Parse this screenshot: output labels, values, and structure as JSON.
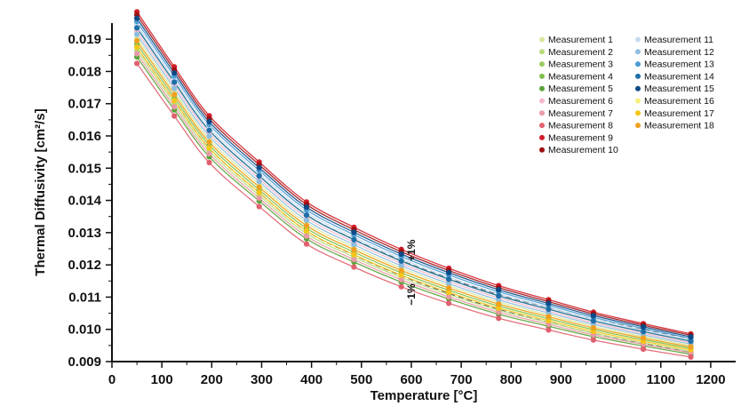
{
  "chart_data": {
    "type": "line",
    "title": "",
    "xlabel": "Temperature [°C]",
    "ylabel": "Thermal Diffusivity [cm²/s]",
    "xlim": [
      0,
      1250
    ],
    "ylim": [
      0.009,
      0.0195
    ],
    "x_ticks": [
      "0",
      "100",
      "200",
      "300",
      "400",
      "500",
      "600",
      "700",
      "800",
      "900",
      "1000",
      "1100",
      "1200"
    ],
    "y_ticks": [
      "0.009",
      "0.010",
      "0.011",
      "0.012",
      "0.013",
      "0.014",
      "0.015",
      "0.016",
      "0.017",
      "0.018",
      "0.019"
    ],
    "x": [
      50,
      125,
      195,
      295,
      390,
      485,
      580,
      675,
      775,
      875,
      965,
      1065,
      1160
    ],
    "mean": [
      0.01905,
      0.01738,
      0.0159,
      0.0145,
      0.0133,
      0.01255,
      0.0119,
      0.01135,
      0.01085,
      0.01045,
      0.0101,
      0.00978,
      0.0095
    ],
    "series": [
      {
        "name": "Measurement 1",
        "color": "#d8e6a0",
        "offset": 0.0
      },
      {
        "name": "Measurement 2",
        "color": "#b9d97c",
        "offset": -0.0004
      },
      {
        "name": "Measurement 3",
        "color": "#9ccd62",
        "offset": 0.0003
      },
      {
        "name": "Measurement 4",
        "color": "#7fbf4a",
        "offset": -0.0002
      },
      {
        "name": "Measurement 5",
        "color": "#5aa43a",
        "offset": -0.0006
      },
      {
        "name": "Measurement 6",
        "color": "#f3b8cc",
        "offset": 0.0002
      },
      {
        "name": "Measurement 7",
        "color": "#e89aa6",
        "offset": -0.0005
      },
      {
        "name": "Measurement 8",
        "color": "#e0606e",
        "offset": -0.0008
      },
      {
        "name": "Measurement 9",
        "color": "#d01e2a",
        "offset": 0.0008
      },
      {
        "name": "Measurement 10",
        "color": "#9e1010",
        "offset": 0.0007
      },
      {
        "name": "Measurement 11",
        "color": "#c6dcf0",
        "offset": 0.0004
      },
      {
        "name": "Measurement 12",
        "color": "#8dbde0",
        "offset": 0.0001
      },
      {
        "name": "Measurement 13",
        "color": "#4a9bd0",
        "offset": 0.0005
      },
      {
        "name": "Measurement 14",
        "color": "#1e6fa8",
        "offset": 0.0003
      },
      {
        "name": "Measurement 15",
        "color": "#0d4a86",
        "offset": 0.0006
      },
      {
        "name": "Measurement 16",
        "color": "#f7ef7a",
        "offset": -0.0001
      },
      {
        "name": "Measurement 17",
        "color": "#f5c518",
        "offset": -0.0003
      },
      {
        "name": "Measurement 18",
        "color": "#f0a020",
        "offset": -0.0001
      }
    ],
    "bands": [
      {
        "name": "+1%",
        "factor": 1.01
      },
      {
        "name": "-1%",
        "factor": 0.99
      }
    ],
    "annotations": [
      "+1%",
      "−1%"
    ],
    "legend_position": "top-right"
  }
}
